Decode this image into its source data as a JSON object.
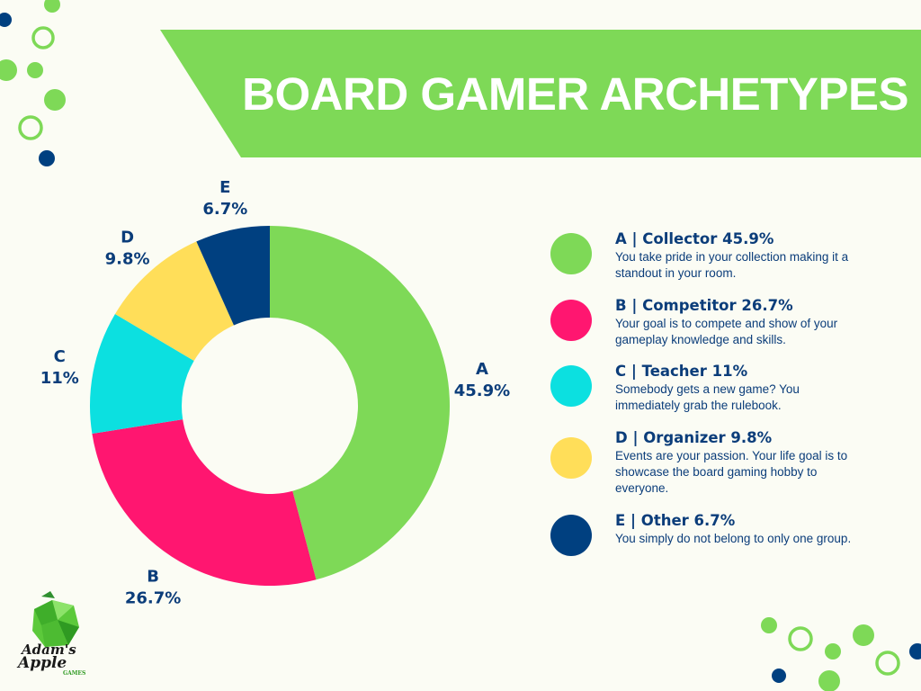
{
  "header": {
    "title": "BOARD GAMER ARCHETYPES"
  },
  "chart_data": {
    "type": "pie",
    "variant": "donut",
    "categories": [
      "A",
      "B",
      "C",
      "D",
      "E"
    ],
    "values": [
      45.9,
      26.7,
      11,
      9.8,
      6.7
    ],
    "value_labels": [
      "45.9%",
      "26.7%",
      "11%",
      "9.8%",
      "6.7%"
    ],
    "colors": [
      "#7ed957",
      "#ff1670",
      "#0ce0e0",
      "#ffde59",
      "#004080"
    ],
    "legend_placement": "right"
  },
  "legend": [
    {
      "title": "A | Collector 45.9%",
      "desc": "You take pride in your collection making it a standout in your room.",
      "color": "#7ed957"
    },
    {
      "title": "B | Competitor 26.7%",
      "desc": "Your goal is to compete and show of your gameplay knowledge and skills.",
      "color": "#ff1670"
    },
    {
      "title": "C | Teacher 11%",
      "desc": "Somebody gets a new game? You immediately grab the rulebook.",
      "color": "#0ce0e0"
    },
    {
      "title": "D | Organizer 9.8%",
      "desc": "Events are your passion. Your life goal is to showcase the board gaming hobby to everyone.",
      "color": "#ffde59"
    },
    {
      "title": "E | Other 6.7%",
      "desc": "You simply do not belong to only one group.",
      "color": "#004080"
    }
  ],
  "logo": {
    "line1": "Adam's",
    "line2": "Apple",
    "line3": "GAMES"
  }
}
